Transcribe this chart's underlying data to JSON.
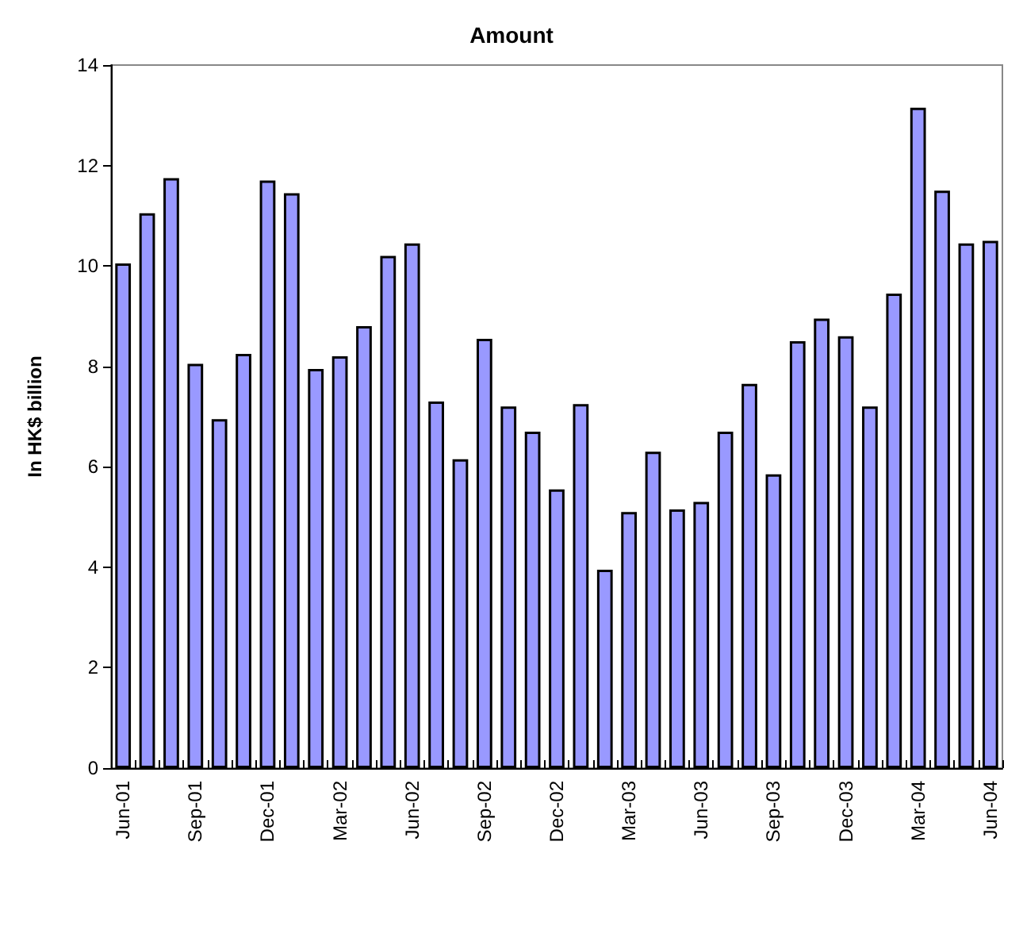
{
  "chart_data": {
    "type": "bar",
    "title": "Amount",
    "ylabel": "In HK$ billion",
    "categories": [
      "Jun-01",
      null,
      null,
      "Sep-01",
      null,
      null,
      "Dec-01",
      null,
      null,
      "Mar-02",
      null,
      null,
      "Jun-02",
      null,
      null,
      "Sep-02",
      null,
      null,
      "Dec-02",
      null,
      null,
      "Mar-03",
      null,
      null,
      "Jun-03",
      null,
      null,
      "Sep-03",
      null,
      null,
      "Dec-03",
      null,
      null,
      "Mar-04",
      null,
      null,
      "Jun-04"
    ],
    "values": [
      10.05,
      11.05,
      11.75,
      8.05,
      6.95,
      8.25,
      11.7,
      11.45,
      7.95,
      8.2,
      8.8,
      10.2,
      10.45,
      7.3,
      6.15,
      8.55,
      7.2,
      6.7,
      5.55,
      7.25,
      3.95,
      5.1,
      6.3,
      5.15,
      5.3,
      6.7,
      7.65,
      5.85,
      8.5,
      8.95,
      8.6,
      7.2,
      9.45,
      13.15,
      11.5,
      10.45,
      10.5
    ],
    "color": "#9999ff",
    "ylim": [
      0,
      14
    ],
    "yticks": [
      0,
      2,
      4,
      6,
      8,
      10,
      12,
      14
    ],
    "grid": false
  }
}
